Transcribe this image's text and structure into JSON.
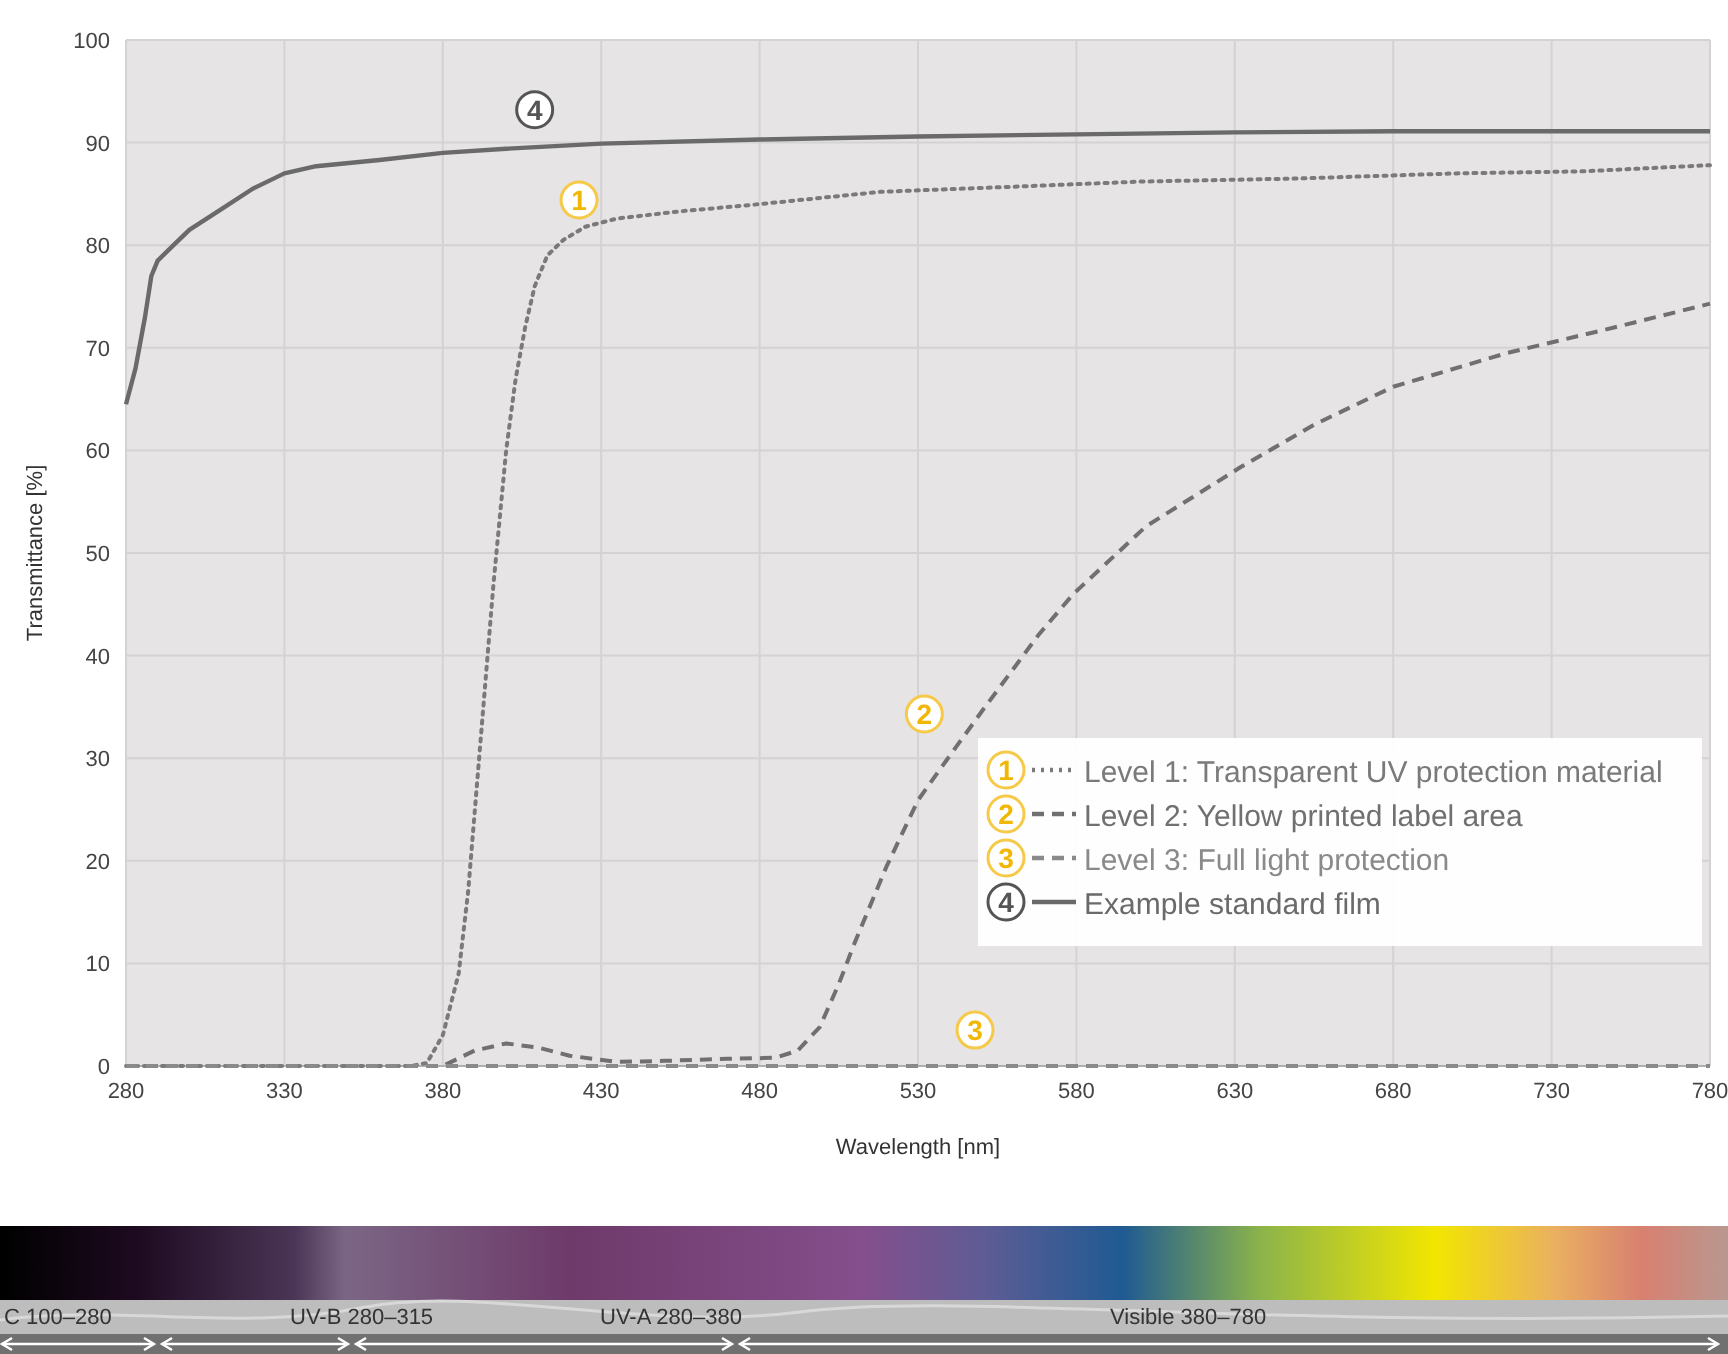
{
  "chart_data": {
    "type": "line",
    "xlabel": "Wavelength [nm]",
    "ylabel": "Transmittance  [%]",
    "xlim": [
      280,
      780
    ],
    "xticks": [
      280,
      330,
      380,
      430,
      480,
      530,
      580,
      630,
      680,
      730,
      780
    ],
    "ylim": [
      0,
      100
    ],
    "yticks": [
      0,
      10,
      20,
      30,
      40,
      50,
      60,
      70,
      80,
      90,
      100
    ],
    "grid": true,
    "legend": "bottom right",
    "series": [
      {
        "name": "Level 1: Transparent UV protection material",
        "color": "#7a7a7a",
        "line_style": "dotted",
        "x": [
          280,
          330,
          370,
          375,
          380,
          385,
          388,
          392,
          396,
          400,
          403,
          406,
          409,
          413,
          418,
          425,
          435,
          455,
          480,
          518,
          560,
          600,
          650,
          700,
          740,
          780
        ],
        "values": [
          0,
          0,
          0,
          0.3,
          3,
          9,
          17,
          32,
          47,
          60,
          67,
          72,
          76,
          79,
          80.5,
          81.8,
          82.6,
          83.3,
          84,
          85.2,
          85.7,
          86.2,
          86.5,
          87,
          87.2,
          87.8
        ]
      },
      {
        "name": "Level 2: Yellow printed label area",
        "color": "#707070",
        "line_style": "dashed",
        "x": [
          280,
          380,
          390,
          400,
          410,
          420,
          435,
          450,
          470,
          485,
          492,
          499,
          505,
          510,
          520,
          530,
          539,
          550,
          568,
          579,
          602,
          632,
          655,
          680,
          716,
          750,
          780
        ],
        "values": [
          0,
          0,
          1.5,
          2.2,
          1.8,
          1,
          0.4,
          0.5,
          0.7,
          0.8,
          1.5,
          3.8,
          8,
          12,
          19.4,
          25.9,
          29.8,
          34.5,
          42,
          46,
          52.6,
          58.4,
          62.5,
          66.2,
          69.5,
          72,
          74.3
        ]
      },
      {
        "name": "Level 3: Full light protection",
        "color": "#8a8a8a",
        "line_style": "dashed",
        "x": [
          280,
          780
        ],
        "values": [
          0,
          0
        ]
      },
      {
        "name": "Example standard film",
        "color": "#6a6a6a",
        "line_style": "solid",
        "x": [
          280,
          283,
          286,
          288,
          290,
          295,
          300,
          310,
          320,
          330,
          340,
          360,
          380,
          400,
          430,
          480,
          530,
          580,
          630,
          680,
          730,
          780
        ],
        "values": [
          64.5,
          68,
          73,
          77,
          78.5,
          80,
          81.5,
          83.5,
          85.5,
          87,
          87.7,
          88.3,
          89,
          89.4,
          89.9,
          90.3,
          90.6,
          90.8,
          91,
          91.1,
          91.1,
          91.1
        ]
      }
    ],
    "annotations": [
      {
        "text": "1",
        "x": 423,
        "y": 84.4
      },
      {
        "text": "2",
        "x": 532,
        "y": 34.3
      },
      {
        "text": "3",
        "x": 548,
        "y": 3.5
      },
      {
        "text": "4",
        "x": 409,
        "y": 93.2
      },
      "C 100–280",
      "UV-B 280–315",
      "UV-A 280–380",
      "Visible 380–780"
    ]
  }
}
